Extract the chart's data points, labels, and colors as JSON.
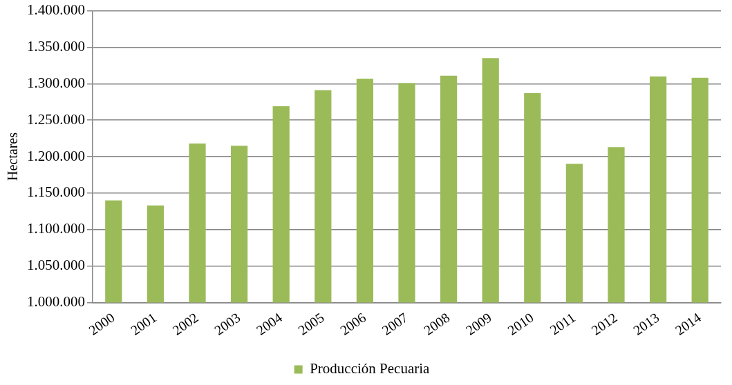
{
  "chart_data": {
    "type": "bar",
    "ylabel": "Hectares",
    "categories": [
      "2000",
      "2001",
      "2002",
      "2003",
      "2004",
      "2005",
      "2006",
      "2007",
      "2008",
      "2009",
      "2010",
      "2011",
      "2012",
      "2013",
      "2014"
    ],
    "series": [
      {
        "name": "Producción Pecuaria",
        "color": "#9bbb59",
        "values": [
          1140000,
          1133000,
          1218000,
          1215000,
          1269000,
          1291000,
          1307000,
          1301000,
          1311000,
          1335000,
          1287000,
          1190000,
          1213000,
          1310000,
          1308000
        ]
      }
    ],
    "ylim": [
      1000000,
      1400000
    ],
    "yticks": [
      {
        "value": 1000000,
        "label": "1.000.000"
      },
      {
        "value": 1050000,
        "label": "1.050.000"
      },
      {
        "value": 1100000,
        "label": "1.100.000"
      },
      {
        "value": 1150000,
        "label": "1.150.000"
      },
      {
        "value": 1200000,
        "label": "1.200.000"
      },
      {
        "value": 1250000,
        "label": "1.250.000"
      },
      {
        "value": 1300000,
        "label": "1.300.000"
      },
      {
        "value": 1350000,
        "label": "1.350.000"
      },
      {
        "value": 1400000,
        "label": "1.400.000"
      }
    ],
    "grid": "y",
    "legend": "bottom"
  }
}
